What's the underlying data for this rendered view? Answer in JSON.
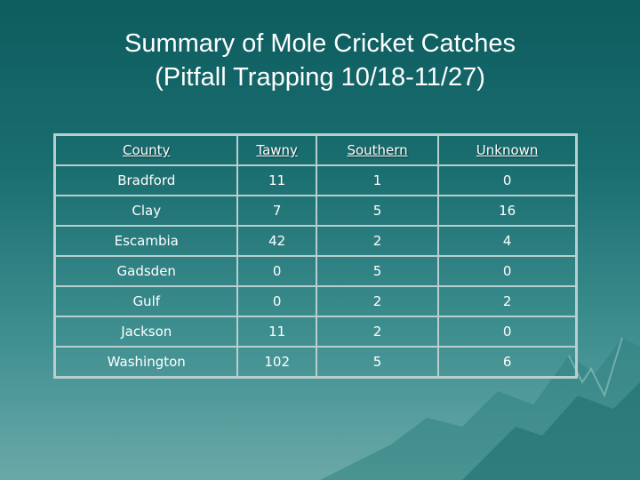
{
  "slide": {
    "title_line1": "Summary of Mole Cricket Catches",
    "title_line2": "(Pitfall Trapping 10/18-11/27)"
  },
  "table": {
    "headers": [
      "County",
      "Tawny",
      "Southern",
      "Unknown"
    ],
    "rows": [
      [
        "Bradford",
        "11",
        "1",
        "0"
      ],
      [
        "Clay",
        "7",
        "5",
        "16"
      ],
      [
        "Escambia",
        "42",
        "2",
        "4"
      ],
      [
        "Gadsden",
        "0",
        "5",
        "0"
      ],
      [
        "Gulf",
        "0",
        "2",
        "2"
      ],
      [
        "Jackson",
        "11",
        "2",
        "0"
      ],
      [
        "Washington",
        "102",
        "5",
        "6"
      ]
    ]
  },
  "colors": {
    "background_top": "#0d5c5e",
    "background_bottom": "#6aa9a8",
    "table_border": "#b9cfcf",
    "text": "#ffffff"
  }
}
